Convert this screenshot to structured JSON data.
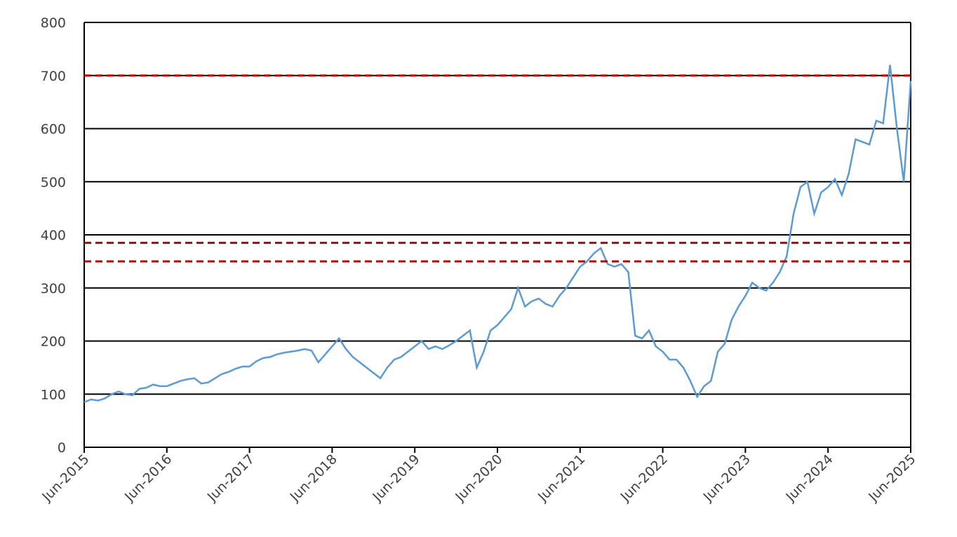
{
  "chart_data": {
    "type": "line",
    "x": [
      "2015-06",
      "2015-07",
      "2015-08",
      "2015-09",
      "2015-10",
      "2015-11",
      "2015-12",
      "2016-01",
      "2016-02",
      "2016-03",
      "2016-04",
      "2016-05",
      "2016-06",
      "2016-07",
      "2016-08",
      "2016-09",
      "2016-10",
      "2016-11",
      "2016-12",
      "2017-01",
      "2017-02",
      "2017-03",
      "2017-04",
      "2017-05",
      "2017-06",
      "2017-07",
      "2017-08",
      "2017-09",
      "2017-10",
      "2017-11",
      "2017-12",
      "2018-01",
      "2018-02",
      "2018-03",
      "2018-04",
      "2018-05",
      "2018-06",
      "2018-07",
      "2018-08",
      "2018-09",
      "2018-10",
      "2018-11",
      "2018-12",
      "2019-01",
      "2019-02",
      "2019-03",
      "2019-04",
      "2019-05",
      "2019-06",
      "2019-07",
      "2019-08",
      "2019-09",
      "2019-10",
      "2019-11",
      "2019-12",
      "2020-01",
      "2020-02",
      "2020-03",
      "2020-04",
      "2020-05",
      "2020-06",
      "2020-07",
      "2020-08",
      "2020-09",
      "2020-10",
      "2020-11",
      "2020-12",
      "2021-01",
      "2021-02",
      "2021-03",
      "2021-04",
      "2021-05",
      "2021-06",
      "2021-07",
      "2021-08",
      "2021-09",
      "2021-10",
      "2021-11",
      "2021-12",
      "2022-01",
      "2022-02",
      "2022-03",
      "2022-04",
      "2022-05",
      "2022-06",
      "2022-07",
      "2022-08",
      "2022-09",
      "2022-10",
      "2022-11",
      "2022-12",
      "2023-01",
      "2023-02",
      "2023-03",
      "2023-04",
      "2023-05",
      "2023-06",
      "2023-07",
      "2023-08",
      "2023-09",
      "2023-10",
      "2023-11",
      "2023-12",
      "2024-01",
      "2024-02",
      "2024-03",
      "2024-04",
      "2024-05",
      "2024-06",
      "2024-07",
      "2024-08",
      "2024-09",
      "2024-10",
      "2024-11",
      "2024-12",
      "2025-01",
      "2025-02",
      "2025-03",
      "2025-04",
      "2025-05",
      "2025-06"
    ],
    "series": [
      {
        "color": "#5b9bd5",
        "values": [
          85,
          90,
          88,
          92,
          100,
          105,
          100,
          98,
          110,
          112,
          118,
          115,
          115,
          120,
          125,
          128,
          130,
          120,
          122,
          130,
          138,
          142,
          148,
          152,
          152,
          162,
          168,
          170,
          175,
          178,
          180,
          182,
          185,
          182,
          160,
          175,
          190,
          205,
          185,
          170,
          160,
          150,
          140,
          130,
          150,
          165,
          170,
          180,
          190,
          200,
          185,
          190,
          185,
          192,
          200,
          210,
          220,
          150,
          180,
          220,
          230,
          245,
          260,
          300,
          265,
          275,
          280,
          270,
          265,
          285,
          300,
          320,
          340,
          350,
          365,
          375,
          345,
          340,
          345,
          330,
          210,
          205,
          220,
          190,
          180,
          165,
          165,
          150,
          125,
          95,
          115,
          125,
          180,
          195,
          240,
          265,
          285,
          310,
          300,
          295,
          310,
          330,
          360,
          440,
          490,
          500,
          440,
          480,
          490,
          505,
          475,
          515,
          580,
          575,
          570,
          615,
          610,
          720,
          600,
          500,
          690
        ]
      }
    ],
    "reference_lines": [
      700,
      385,
      350
    ],
    "reference_color": "#c00000",
    "ylim": [
      0,
      800
    ],
    "yticks": [
      0,
      100,
      200,
      300,
      400,
      500,
      600,
      700,
      800
    ],
    "grid": true,
    "xlim": [
      "2015-06",
      "2025-06"
    ],
    "xticks": [
      {
        "value": "2015-06",
        "label": "Jun-2015"
      },
      {
        "value": "2016-06",
        "label": "Jun-2016"
      },
      {
        "value": "2017-06",
        "label": "Jun-2017"
      },
      {
        "value": "2018-06",
        "label": "Jun-2018"
      },
      {
        "value": "2019-06",
        "label": "Jun-2019"
      },
      {
        "value": "2020-06",
        "label": "Jun-2020"
      },
      {
        "value": "2021-06",
        "label": "Jun-2021"
      },
      {
        "value": "2022-06",
        "label": "Jun-2022"
      },
      {
        "value": "2023-06",
        "label": "Jun-2023"
      },
      {
        "value": "2024-06",
        "label": "Jun-2024"
      },
      {
        "value": "2025-06",
        "label": "Jun-2025"
      }
    ]
  }
}
